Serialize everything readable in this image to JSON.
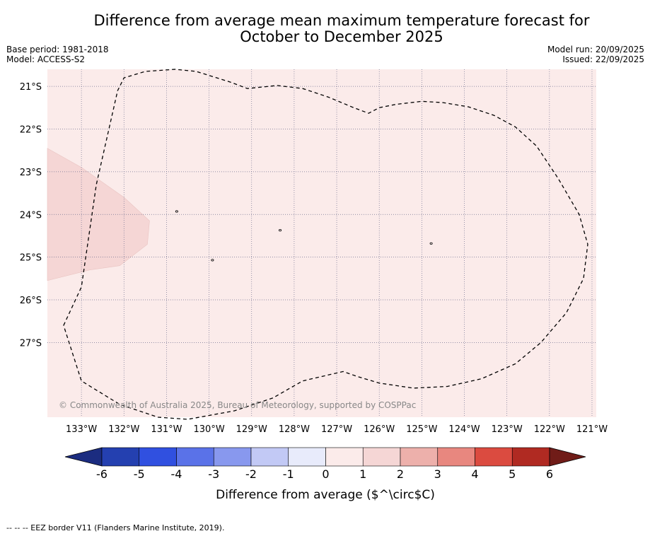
{
  "title": {
    "line1": "Difference from average mean maximum temperature forecast for",
    "line2": "October to December 2025"
  },
  "meta": {
    "base_period": "Base period: 1981-2018",
    "model": "Model: ACCESS-S2",
    "model_run": "Model run: 20/09/2025",
    "issued": "Issued: 22/09/2025"
  },
  "map": {
    "longitudes": [
      -133,
      -132,
      -131,
      -130,
      -129,
      -128,
      -127,
      -126,
      -125,
      -124,
      -123,
      -122,
      -121
    ],
    "latitudes": [
      -21,
      -22,
      -23,
      -24,
      -25,
      -26,
      -27
    ],
    "lon_labels": [
      "133°W",
      "132°W",
      "131°W",
      "130°W",
      "129°W",
      "128°W",
      "127°W",
      "126°W",
      "125°W",
      "124°W",
      "123°W",
      "122°W",
      "121°W"
    ],
    "lat_labels": [
      "21°S",
      "22°S",
      "23°S",
      "24°S",
      "25°S",
      "26°S",
      "27°S"
    ],
    "extent": {
      "lon_min": -133.8,
      "lon_max": -120.9,
      "lat_max": -20.6,
      "lat_min": -28.75
    },
    "background_category": "0 to 1 °C",
    "background_color": "#fbebea",
    "patch_category": "1 to 2 °C",
    "patch_color": "#f5d6d5",
    "patch_lonlat": [
      [
        -133.8,
        -22.45
      ],
      [
        -133.0,
        -22.9
      ],
      [
        -132.0,
        -23.6
      ],
      [
        -131.4,
        -24.15
      ],
      [
        -131.45,
        -24.7
      ],
      [
        -132.1,
        -25.2
      ],
      [
        -132.8,
        -25.3
      ],
      [
        -133.8,
        -25.55
      ]
    ],
    "eez_lonlat": [
      [
        -133.42,
        -26.6
      ],
      [
        -133.0,
        -25.7
      ],
      [
        -132.65,
        -23.3
      ],
      [
        -132.15,
        -21.1
      ],
      [
        -132.0,
        -20.8
      ],
      [
        -131.5,
        -20.65
      ],
      [
        -130.8,
        -20.6
      ],
      [
        -130.3,
        -20.65
      ],
      [
        -129.5,
        -20.9
      ],
      [
        -129.1,
        -21.05
      ],
      [
        -128.4,
        -20.98
      ],
      [
        -127.8,
        -21.05
      ],
      [
        -127.2,
        -21.25
      ],
      [
        -126.6,
        -21.5
      ],
      [
        -126.25,
        -21.63
      ],
      [
        -126.0,
        -21.5
      ],
      [
        -125.6,
        -21.42
      ],
      [
        -125.0,
        -21.35
      ],
      [
        -124.5,
        -21.38
      ],
      [
        -123.9,
        -21.48
      ],
      [
        -123.3,
        -21.68
      ],
      [
        -122.8,
        -21.95
      ],
      [
        -122.3,
        -22.4
      ],
      [
        -121.8,
        -23.15
      ],
      [
        -121.3,
        -24.0
      ],
      [
        -121.1,
        -24.7
      ],
      [
        -121.2,
        -25.5
      ],
      [
        -121.6,
        -26.3
      ],
      [
        -122.2,
        -27.0
      ],
      [
        -122.8,
        -27.5
      ],
      [
        -123.6,
        -27.85
      ],
      [
        -124.4,
        -28.03
      ],
      [
        -125.2,
        -28.07
      ],
      [
        -126.0,
        -27.95
      ],
      [
        -126.5,
        -27.8
      ],
      [
        -126.85,
        -27.68
      ],
      [
        -127.8,
        -27.9
      ],
      [
        -128.5,
        -28.3
      ],
      [
        -129.4,
        -28.6
      ],
      [
        -130.5,
        -28.8
      ],
      [
        -131.2,
        -28.75
      ],
      [
        -132.1,
        -28.45
      ],
      [
        -133.0,
        -27.9
      ],
      [
        -133.42,
        -26.6
      ]
    ],
    "islands_lonlat": [
      [
        -130.76,
        -23.93
      ],
      [
        -128.33,
        -24.37
      ],
      [
        -129.92,
        -25.07
      ],
      [
        -124.78,
        -24.68
      ]
    ],
    "copyright": "© Commonwealth of Australia 2025, Bureau of Meteorology, supported by COSPPac"
  },
  "colorbar": {
    "title": "Difference from average ($^\\circ$C)",
    "labels": [
      "-6",
      "-5",
      "-4",
      "-3",
      "-2",
      "-1",
      "0",
      "1",
      "2",
      "3",
      "4",
      "5",
      "6"
    ],
    "under_color": "#1b2c80",
    "over_color": "#701c18",
    "colors": [
      "#2440b0",
      "#3050e0",
      "#5a72e8",
      "#8898ee",
      "#c2c9f5",
      "#e8ebfb",
      "#fbebea",
      "#f5d6d5",
      "#edb0ab",
      "#e8877f",
      "#db4b40",
      "#b02a22"
    ]
  },
  "footnote": "-- -- -- EEZ border V11 (Flanders Marine Institute, 2019)."
}
